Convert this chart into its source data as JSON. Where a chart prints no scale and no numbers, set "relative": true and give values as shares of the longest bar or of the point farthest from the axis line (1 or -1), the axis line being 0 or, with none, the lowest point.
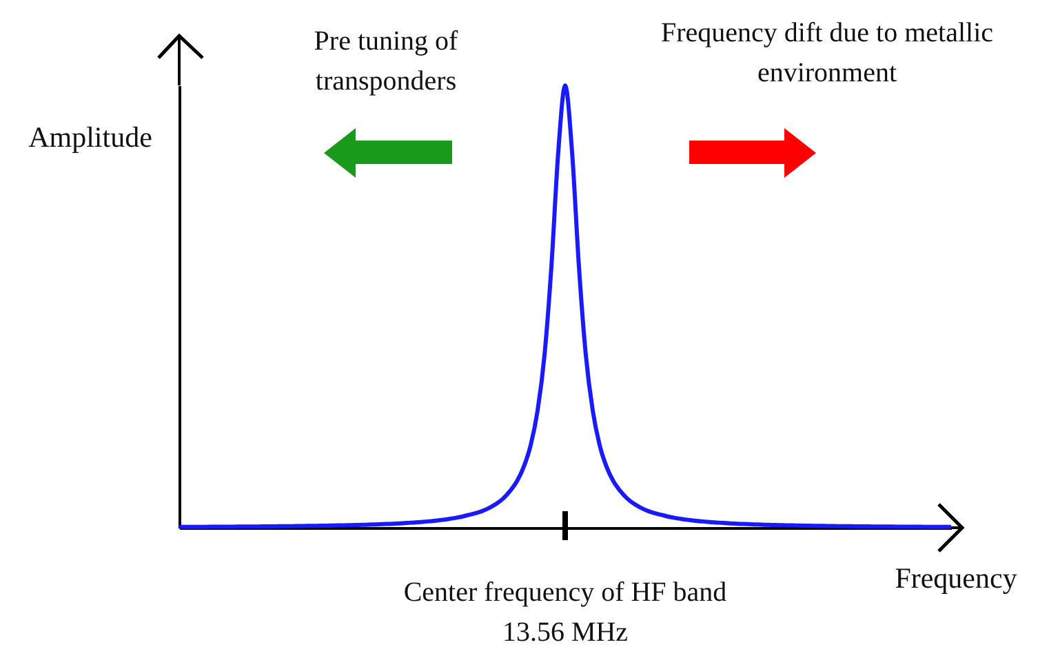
{
  "chart_data": {
    "type": "line",
    "relative": true,
    "xlabel": "Frequency",
    "ylabel": "Amplitude",
    "annotations": [
      "Pre tuning of\ntransponders",
      "Frequency dift due to metallic\nenvironment",
      "Center frequency of  HF band\n13.56 MHz"
    ],
    "categories": [
      null,
      null,
      null,
      null,
      null,
      null,
      null,
      null,
      null,
      null,
      null,
      null,
      null,
      null,
      null,
      null,
      null,
      null,
      null,
      null,
      null,
      null,
      null,
      null,
      null,
      null,
      null,
      null,
      null,
      null,
      null,
      null,
      null,
      null,
      null,
      null,
      null,
      null,
      null,
      null,
      null,
      null,
      null,
      null,
      null,
      null,
      null,
      null,
      null,
      null,
      null,
      null,
      null,
      null,
      null,
      null,
      null,
      null,
      null,
      null,
      null,
      null,
      null,
      null,
      null,
      null,
      null,
      null,
      null,
      null,
      null,
      null,
      null,
      null,
      null,
      null,
      null,
      null,
      null,
      null,
      null,
      null,
      null,
      null,
      null,
      null,
      null,
      null,
      null,
      null,
      null,
      null,
      null,
      null,
      null,
      null,
      null,
      null,
      null,
      null,
      null,
      null,
      null,
      null,
      null,
      null,
      null,
      null,
      null,
      null,
      null,
      null,
      null
    ],
    "series": [
      {
        "color": "#1a1aff",
        "values": [
          0.0018,
          0.0019,
          0.002,
          0.002,
          0.0021,
          0.0022,
          0.0023,
          0.0024,
          0.0025,
          0.0026,
          0.0027,
          0.0028,
          0.003,
          0.0031,
          0.0033,
          0.0034,
          0.0036,
          0.0038,
          0.004,
          0.0042,
          0.0044,
          0.0047,
          0.005,
          0.0053,
          0.0056,
          0.006,
          0.0064,
          0.0068,
          0.0073,
          0.0078,
          0.0084,
          0.0091,
          0.0099,
          0.0108,
          0.0118,
          0.0129,
          0.0142,
          0.0157,
          0.0175,
          0.0195,
          0.022,
          0.025,
          0.029,
          0.033,
          0.038,
          0.045,
          0.054,
          0.066,
          0.083,
          0.105,
          0.138,
          0.187,
          0.265,
          0.39,
          0.59,
          0.85,
          1,
          0.85,
          0.59,
          0.39,
          0.265,
          0.187,
          0.138,
          0.105,
          0.083,
          0.066,
          0.054,
          0.045,
          0.038,
          0.033,
          0.029,
          0.025,
          0.022,
          0.0195,
          0.0175,
          0.0157,
          0.0142,
          0.0129,
          0.0118,
          0.0108,
          0.0099,
          0.0091,
          0.0084,
          0.0078,
          0.0073,
          0.0068,
          0.0064,
          0.006,
          0.0056,
          0.0053,
          0.005,
          0.0047,
          0.0044,
          0.0042,
          0.004,
          0.0038,
          0.0036,
          0.0034,
          0.0033,
          0.0031,
          0.003,
          0.0028,
          0.0027,
          0.0026,
          0.0025,
          0.0024,
          0.0023,
          0.0022,
          0.0021,
          0.002,
          0.002,
          0.0019,
          0.0018
        ]
      }
    ]
  }
}
